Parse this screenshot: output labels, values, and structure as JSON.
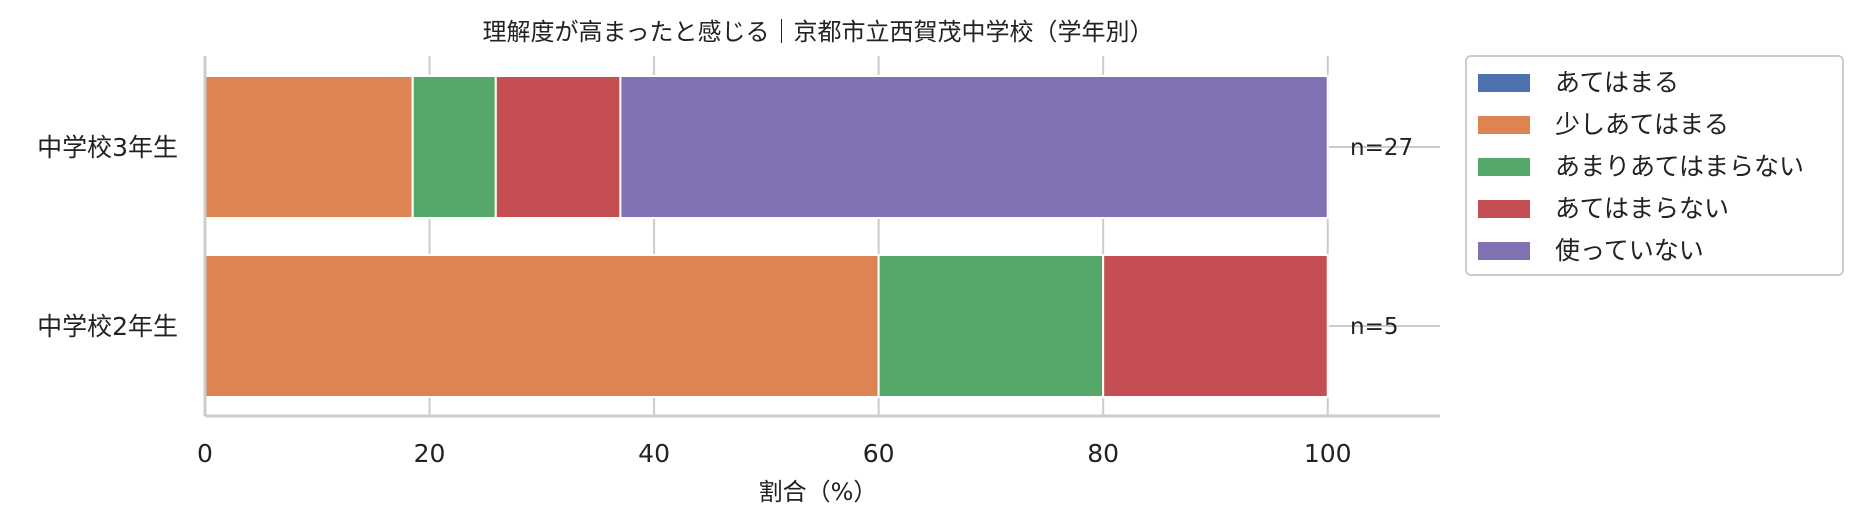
{
  "chart_data": {
    "type": "bar",
    "orientation": "horizontal",
    "stacked": true,
    "title": "理解度が高まったと感じる｜京都市立西賀茂中学校（学年別）",
    "xlabel": "割合（%）",
    "ylabel": "",
    "xlim": [
      0,
      110
    ],
    "xticks": [
      0,
      20,
      40,
      60,
      80,
      100
    ],
    "grid": true,
    "legend_position": "outside-right-top",
    "categories": [
      "中学校3年生",
      "中学校2年生"
    ],
    "n_labels": [
      "n=27",
      "n=5"
    ],
    "series": [
      {
        "name": "あてはまる",
        "color": "#4c72b0",
        "values": [
          0,
          0
        ]
      },
      {
        "name": "少しあてはまる",
        "color": "#dd8452",
        "values": [
          18.5,
          60
        ]
      },
      {
        "name": "あまりあてはまらない",
        "color": "#55a868",
        "values": [
          7.4,
          20
        ]
      },
      {
        "name": "あてはまらない",
        "color": "#c44e52",
        "values": [
          11.1,
          20
        ]
      },
      {
        "name": "使っていない",
        "color": "#8172b3",
        "values": [
          63.0,
          0
        ]
      }
    ]
  }
}
